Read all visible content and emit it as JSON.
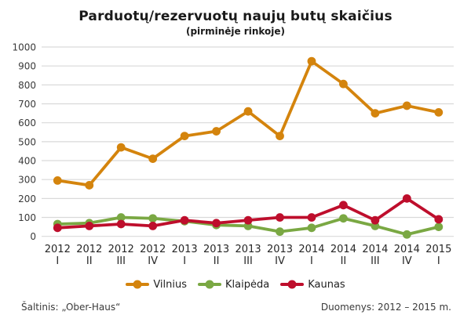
{
  "chart_data": {
    "type": "line",
    "title": "Parduotų/rezervuotų naujų butų skaičius",
    "subtitle": "(pirminėje rinkoje)",
    "categories": [
      {
        "year": "2012",
        "quarter": "I"
      },
      {
        "year": "2012",
        "quarter": "II"
      },
      {
        "year": "2012",
        "quarter": "III"
      },
      {
        "year": "2012",
        "quarter": "IV"
      },
      {
        "year": "2013",
        "quarter": "I"
      },
      {
        "year": "2013",
        "quarter": "II"
      },
      {
        "year": "2013",
        "quarter": "III"
      },
      {
        "year": "2013",
        "quarter": "IV"
      },
      {
        "year": "2014",
        "quarter": "I"
      },
      {
        "year": "2014",
        "quarter": "II"
      },
      {
        "year": "2014",
        "quarter": "III"
      },
      {
        "year": "2014",
        "quarter": "IV"
      },
      {
        "year": "2015",
        "quarter": "I"
      }
    ],
    "series": [
      {
        "name": "Vilnius",
        "slug": "vilnius",
        "color": "#D4840D",
        "values": [
          295,
          270,
          470,
          410,
          530,
          555,
          660,
          530,
          925,
          805,
          650,
          690,
          655
        ]
      },
      {
        "name": "Klaipėda",
        "slug": "klaipeda",
        "color": "#7AA843",
        "values": [
          65,
          70,
          100,
          95,
          80,
          60,
          55,
          25,
          45,
          95,
          55,
          10,
          50
        ]
      },
      {
        "name": "Kaunas",
        "slug": "kaunas",
        "color": "#BE0E2C",
        "values": [
          45,
          55,
          65,
          55,
          85,
          70,
          85,
          100,
          100,
          165,
          85,
          200,
          90
        ]
      }
    ],
    "xlabel": "",
    "ylabel": "",
    "ylim": [
      0,
      1000
    ],
    "ytick_step": 100,
    "grid": true,
    "gridline_color": "#D9D9D9",
    "legend_position": "bottom"
  },
  "footer": {
    "source": "Šaltinis: „Ober-Haus“",
    "data_range": "Duomenys: 2012 – 2015 m."
  }
}
